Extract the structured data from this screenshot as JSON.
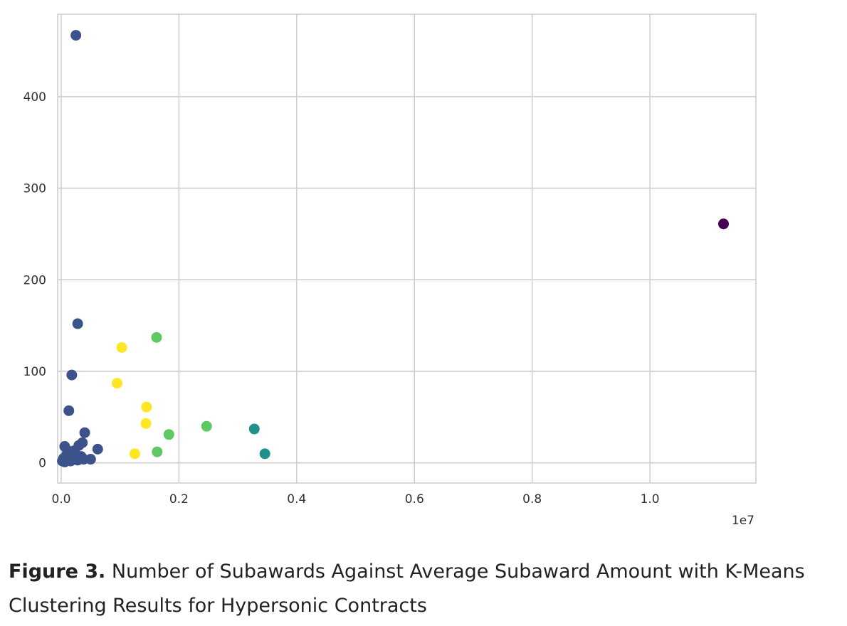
{
  "chart_data": {
    "type": "scatter",
    "title": "",
    "xlabel": "",
    "ylabel": "",
    "x_offset_label": "1e7",
    "xlim": [
      -0.06,
      11.8
    ],
    "ylim": [
      -22,
      490
    ],
    "x_ticks": [
      {
        "value": 0.0,
        "label": "0.0"
      },
      {
        "value": 2.0,
        "label": "0.2"
      },
      {
        "value": 4.0,
        "label": "0.4"
      },
      {
        "value": 6.0,
        "label": "0.6"
      },
      {
        "value": 8.0,
        "label": "0.8"
      },
      {
        "value": 10.0,
        "label": "1.0"
      }
    ],
    "y_ticks": [
      {
        "value": 0,
        "label": "0"
      },
      {
        "value": 100,
        "label": "100"
      },
      {
        "value": 200,
        "label": "200"
      },
      {
        "value": 300,
        "label": "300"
      },
      {
        "value": 400,
        "label": "400"
      }
    ],
    "grid": true,
    "legend": "none",
    "series": [
      {
        "color": "#440154",
        "points": [
          {
            "x": 11.25,
            "y": 261
          }
        ]
      },
      {
        "color": "#3b528b",
        "points": [
          {
            "x": 0.25,
            "y": 467
          },
          {
            "x": 0.28,
            "y": 152
          },
          {
            "x": 0.18,
            "y": 96
          },
          {
            "x": 0.13,
            "y": 57
          },
          {
            "x": 0.4,
            "y": 33
          },
          {
            "x": 0.36,
            "y": 22
          },
          {
            "x": 0.62,
            "y": 15
          },
          {
            "x": 0.06,
            "y": 18
          },
          {
            "x": 0.3,
            "y": 19
          },
          {
            "x": 0.2,
            "y": 13
          },
          {
            "x": 0.1,
            "y": 10
          },
          {
            "x": 0.15,
            "y": 8
          },
          {
            "x": 0.25,
            "y": 9
          },
          {
            "x": 0.34,
            "y": 7
          },
          {
            "x": 0.04,
            "y": 5
          },
          {
            "x": 0.08,
            "y": 3
          },
          {
            "x": 0.12,
            "y": 4
          },
          {
            "x": 0.2,
            "y": 5
          },
          {
            "x": 0.28,
            "y": 3
          },
          {
            "x": 0.5,
            "y": 4
          },
          {
            "x": 0.02,
            "y": 2
          },
          {
            "x": 0.06,
            "y": 1
          },
          {
            "x": 0.16,
            "y": 2
          },
          {
            "x": 0.22,
            "y": 6
          },
          {
            "x": 0.38,
            "y": 4
          }
        ]
      },
      {
        "color": "#21918c",
        "points": [
          {
            "x": 3.28,
            "y": 37
          },
          {
            "x": 3.46,
            "y": 10
          }
        ]
      },
      {
        "color": "#5ec962",
        "points": [
          {
            "x": 1.62,
            "y": 137
          },
          {
            "x": 2.47,
            "y": 40
          },
          {
            "x": 1.83,
            "y": 31
          },
          {
            "x": 1.63,
            "y": 12
          }
        ]
      },
      {
        "color": "#fde725",
        "points": [
          {
            "x": 1.03,
            "y": 126
          },
          {
            "x": 0.95,
            "y": 87
          },
          {
            "x": 1.45,
            "y": 61
          },
          {
            "x": 1.44,
            "y": 43
          },
          {
            "x": 1.25,
            "y": 10
          }
        ]
      }
    ]
  },
  "caption": {
    "label": "Figure 3.",
    "text": " Number of Subawards Against Average Subaward Amount with K-Means Clustering Results for Hypersonic Contracts"
  }
}
